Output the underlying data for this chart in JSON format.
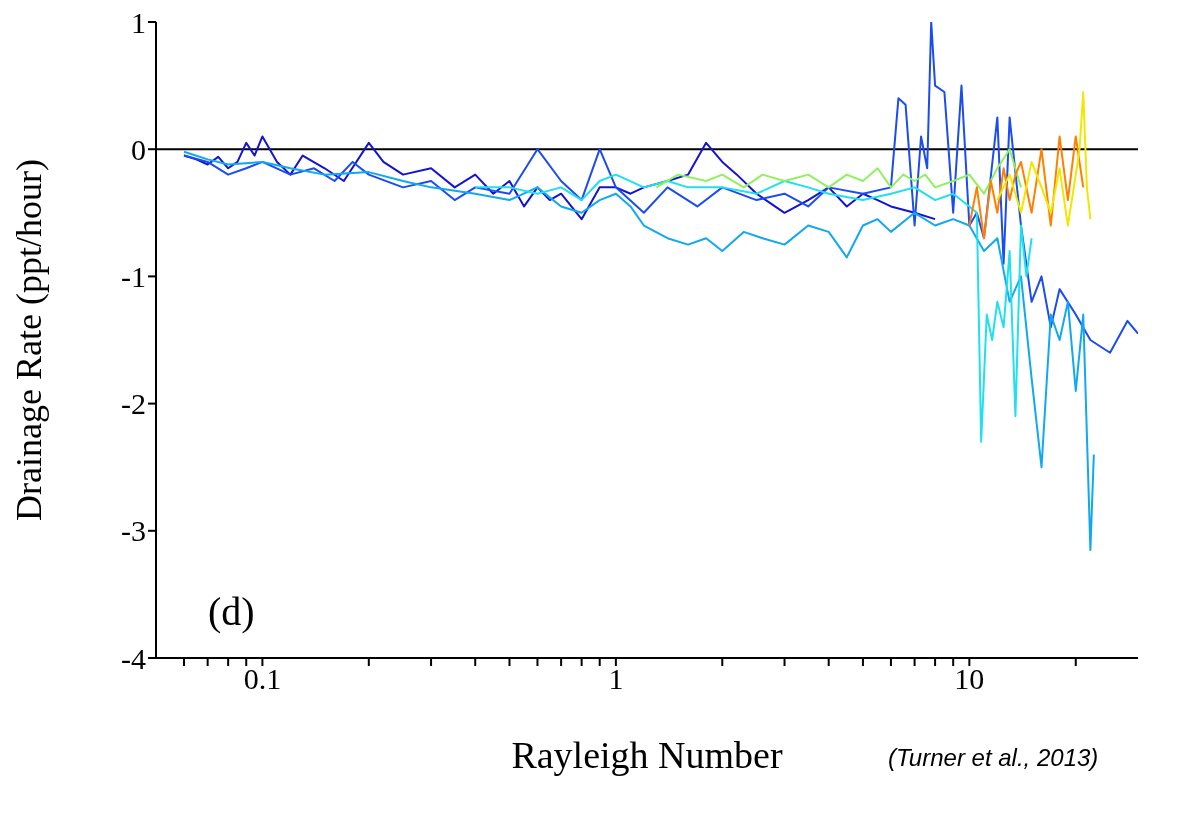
{
  "chart_data": {
    "type": "line",
    "xlabel": "Rayleigh Number",
    "ylabel": "Drainage Rate (ppt/hour)",
    "log": "x",
    "xlim": [
      0.05,
      30
    ],
    "ylim": [
      -4,
      1
    ],
    "xticks": [
      {
        "value": 0.06,
        "label": null
      },
      {
        "value": 0.07,
        "label": null
      },
      {
        "value": 0.08,
        "label": null
      },
      {
        "value": 0.09,
        "label": null
      },
      0.1,
      {
        "value": 0.2,
        "label": null
      },
      {
        "value": 0.3,
        "label": null
      },
      {
        "value": 0.4,
        "label": null
      },
      {
        "value": 0.5,
        "label": null
      },
      {
        "value": 0.6,
        "label": null
      },
      {
        "value": 0.7,
        "label": null
      },
      {
        "value": 0.8,
        "label": null
      },
      {
        "value": 0.9,
        "label": null
      },
      1,
      {
        "value": 2,
        "label": null
      },
      {
        "value": 3,
        "label": null
      },
      {
        "value": 4,
        "label": null
      },
      {
        "value": 5,
        "label": null
      },
      {
        "value": 6,
        "label": null
      },
      {
        "value": 7,
        "label": null
      },
      {
        "value": 8,
        "label": null
      },
      {
        "value": 9,
        "label": null
      },
      10,
      {
        "value": 20,
        "label": null
      }
    ],
    "yticks": [
      -4,
      -3,
      -2,
      -1,
      0,
      1
    ],
    "grid": false,
    "marker": "none",
    "line_style": "solid",
    "ref_lines": [
      {
        "axis": "y",
        "value": 0,
        "color": "#000000"
      }
    ],
    "annotations": [
      "(d)",
      "(Turner et al., 2013)"
    ],
    "series": [
      {
        "color": "#1414d0",
        "x": [
          0.06,
          0.065,
          0.07,
          0.075,
          0.08,
          0.085,
          0.09,
          0.095,
          0.1,
          0.11,
          0.12,
          0.13,
          0.15,
          0.17,
          0.2,
          0.22,
          0.25,
          0.3,
          0.35,
          0.4,
          0.45,
          0.5,
          0.55,
          0.6,
          0.65,
          0.7,
          0.8,
          0.9,
          1,
          1.1,
          1.2,
          1.4,
          1.6,
          1.8,
          2,
          2.2,
          2.5,
          3,
          3.5,
          4,
          4.5,
          5,
          5.5,
          6,
          7,
          8
        ],
        "values": [
          -0.05,
          -0.08,
          -0.12,
          -0.06,
          -0.15,
          -0.1,
          0.05,
          -0.05,
          0.1,
          -0.1,
          -0.2,
          -0.05,
          -0.15,
          -0.25,
          0.05,
          -0.1,
          -0.2,
          -0.15,
          -0.3,
          -0.2,
          -0.35,
          -0.25,
          -0.45,
          -0.3,
          -0.4,
          -0.35,
          -0.55,
          -0.3,
          -0.3,
          -0.35,
          -0.3,
          -0.25,
          -0.2,
          0.05,
          -0.1,
          -0.2,
          -0.35,
          -0.5,
          -0.4,
          -0.3,
          -0.45,
          -0.35,
          -0.4,
          -0.45,
          -0.5,
          -0.55
        ]
      },
      {
        "color": "#1a4cf0",
        "x": [
          0.06,
          0.07,
          0.08,
          0.09,
          0.1,
          0.12,
          0.14,
          0.16,
          0.18,
          0.2,
          0.25,
          0.3,
          0.35,
          0.4,
          0.5,
          0.6,
          0.7,
          0.8,
          0.9,
          1,
          1.2,
          1.4,
          1.7,
          2,
          2.5,
          3,
          3.5,
          4,
          5,
          6,
          6.3,
          6.6,
          7,
          7.3,
          7.6,
          7.8,
          8,
          8.5,
          9,
          9.5,
          10,
          10.5,
          11,
          12,
          12.5,
          13,
          14,
          15,
          16,
          17,
          18,
          20,
          22,
          25,
          28,
          30
        ],
        "values": [
          -0.05,
          -0.1,
          -0.2,
          -0.15,
          -0.1,
          -0.2,
          -0.15,
          -0.25,
          -0.1,
          -0.2,
          -0.3,
          -0.25,
          -0.4,
          -0.3,
          -0.35,
          0.0,
          -0.25,
          -0.4,
          0.0,
          -0.3,
          -0.5,
          -0.3,
          -0.45,
          -0.3,
          -0.4,
          -0.35,
          -0.45,
          -0.3,
          -0.35,
          -0.3,
          0.4,
          0.35,
          -0.6,
          0.1,
          -0.15,
          1.0,
          0.5,
          0.45,
          -0.5,
          0.5,
          -0.6,
          -0.5,
          -0.7,
          0.25,
          -0.9,
          0.25,
          -0.6,
          -1.2,
          -1.0,
          -1.4,
          -1.1,
          -1.3,
          -1.5,
          -1.6,
          -1.35,
          -1.45
        ]
      },
      {
        "color": "#10a8f0",
        "x": [
          0.06,
          0.07,
          0.08,
          0.1,
          0.12,
          0.15,
          0.2,
          0.25,
          0.3,
          0.4,
          0.5,
          0.6,
          0.7,
          0.8,
          0.9,
          1,
          1.1,
          1.2,
          1.4,
          1.6,
          1.8,
          2,
          2.3,
          2.6,
          3,
          3.5,
          4,
          4.5,
          5,
          5.5,
          6,
          7,
          8,
          9,
          10,
          11,
          12,
          13,
          14,
          15,
          16,
          17,
          18,
          19,
          20,
          21,
          22,
          22.5
        ],
        "values": [
          -0.02,
          -0.08,
          -0.12,
          -0.1,
          -0.15,
          -0.2,
          -0.18,
          -0.25,
          -0.3,
          -0.35,
          -0.4,
          -0.3,
          -0.45,
          -0.5,
          -0.4,
          -0.35,
          -0.45,
          -0.6,
          -0.7,
          -0.75,
          -0.7,
          -0.8,
          -0.65,
          -0.7,
          -0.75,
          -0.6,
          -0.65,
          -0.85,
          -0.6,
          -0.55,
          -0.65,
          -0.5,
          -0.6,
          -0.55,
          -0.6,
          -0.8,
          -0.7,
          -1.2,
          -1.0,
          -1.8,
          -2.5,
          -1.3,
          -1.5,
          -1.2,
          -1.9,
          -1.3,
          -3.15,
          -2.4
        ]
      },
      {
        "color": "#20e0f0",
        "x": [
          0.4,
          0.5,
          0.6,
          0.7,
          0.8,
          0.9,
          1,
          1.2,
          1.4,
          1.6,
          2,
          2.5,
          3,
          3.5,
          4,
          5,
          6,
          7,
          8,
          9,
          10,
          10.5,
          10.8,
          11.2,
          11.6,
          12,
          12.5,
          13,
          13.5,
          14,
          14.5,
          15
        ],
        "values": [
          -0.3,
          -0.3,
          -0.35,
          -0.3,
          -0.4,
          -0.25,
          -0.2,
          -0.3,
          -0.25,
          -0.3,
          -0.3,
          -0.35,
          -0.25,
          -0.3,
          -0.35,
          -0.4,
          -0.35,
          -0.3,
          -0.4,
          -0.35,
          -0.45,
          -0.5,
          -2.3,
          -1.3,
          -1.5,
          -1.2,
          -1.4,
          -0.8,
          -2.1,
          -0.6,
          -1.0,
          -0.7
        ]
      },
      {
        "color": "#90f060",
        "x": [
          1.3,
          1.5,
          1.8,
          2,
          2.3,
          2.6,
          3,
          3.5,
          4,
          4.5,
          5,
          5.5,
          6,
          6.5,
          7,
          7.5,
          8,
          9,
          10,
          11,
          12,
          13,
          14
        ],
        "values": [
          -0.3,
          -0.2,
          -0.25,
          -0.2,
          -0.3,
          -0.2,
          -0.25,
          -0.2,
          -0.3,
          -0.2,
          -0.25,
          -0.15,
          -0.3,
          -0.2,
          -0.25,
          -0.2,
          -0.3,
          -0.25,
          -0.2,
          -0.35,
          -0.15,
          0.0,
          -0.3
        ]
      },
      {
        "color": "#ff8000",
        "x": [
          10,
          10.5,
          11,
          11.5,
          12,
          12.5,
          13,
          13.5,
          14,
          15,
          16,
          17,
          18,
          19,
          20,
          21
        ],
        "values": [
          -0.6,
          -0.3,
          -0.7,
          -0.25,
          -0.5,
          -0.15,
          -0.4,
          -0.2,
          -0.1,
          -0.5,
          0.0,
          -0.6,
          0.1,
          -0.4,
          0.1,
          -0.3
        ]
      },
      {
        "color": "#f0e800",
        "x": [
          12,
          13,
          14,
          15,
          16,
          17,
          18,
          19,
          20,
          20.5,
          21,
          21.5,
          22
        ],
        "values": [
          -0.4,
          -0.2,
          -0.5,
          -0.1,
          -0.3,
          -0.5,
          -0.15,
          -0.6,
          -0.2,
          0.0,
          0.45,
          -0.3,
          -0.55
        ]
      }
    ]
  }
}
